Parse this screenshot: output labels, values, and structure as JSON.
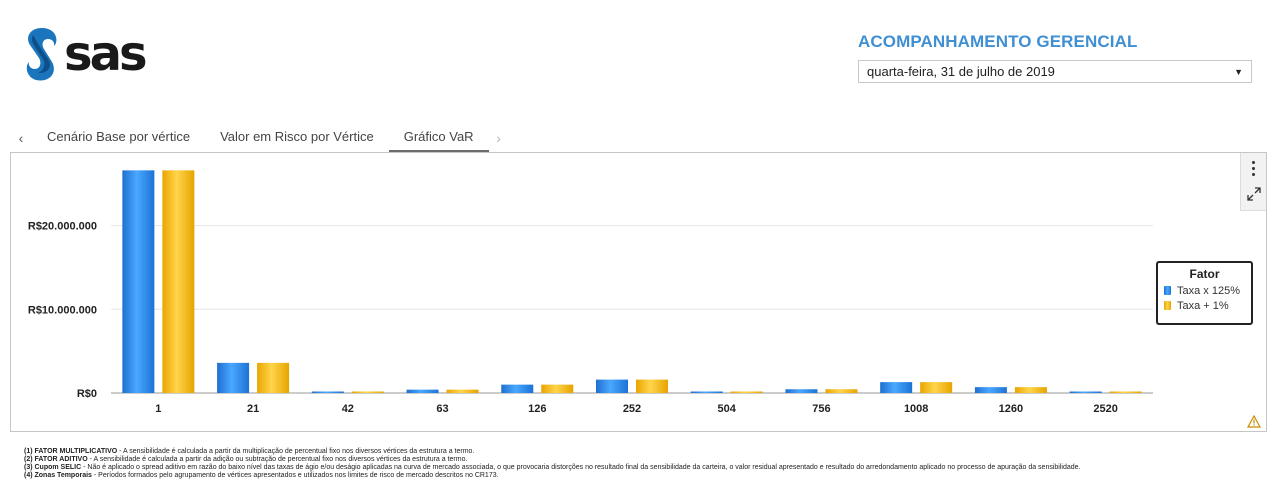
{
  "logo": {
    "text": "sas",
    "icon": "sas-s-logo-icon",
    "color": "#1b75bc"
  },
  "header": {
    "title": "ACOMPANHAMENTO GERENCIAL",
    "title_color": "#3f8fd2",
    "date_selected": "quarta-feira, 31 de julho de 2019"
  },
  "tabs": {
    "prev_icon": "chevron-left-icon",
    "next_icon": "chevron-right-icon",
    "items": [
      {
        "label": "Cenário Base por vértice",
        "active": false
      },
      {
        "label": "Valor em Risco por Vértice",
        "active": false
      },
      {
        "label": "Gráfico VaR",
        "active": true
      }
    ]
  },
  "panel": {
    "menu_icon": "more-vertical-icon",
    "expand_icon": "expand-icon",
    "warning_icon": "warning-icon"
  },
  "chart_data": {
    "type": "bar",
    "categories": [
      "1",
      "21",
      "42",
      "63",
      "126",
      "252",
      "504",
      "756",
      "1008",
      "1260",
      "2520"
    ],
    "series": [
      {
        "name": "Taxa x 125%",
        "color": "#2a8ff0",
        "values": [
          26600000,
          3600000,
          100000,
          400000,
          1000000,
          1600000,
          80000,
          450000,
          1300000,
          700000,
          150000
        ]
      },
      {
        "name": "Taxa + 1%",
        "color": "#f5bd1f",
        "values": [
          26600000,
          3600000,
          100000,
          400000,
          1000000,
          1600000,
          80000,
          450000,
          1300000,
          700000,
          150000
        ]
      }
    ],
    "ylim": [
      0,
      27000000
    ],
    "yticks": [
      {
        "value": 0,
        "label": "R$0"
      },
      {
        "value": 10000000,
        "label": "R$10.000.000"
      },
      {
        "value": 20000000,
        "label": "R$20.000.000"
      }
    ],
    "grid": true,
    "legend": {
      "title": "Fator",
      "position": "right"
    }
  },
  "footnotes": [
    {
      "label": "(1) FATOR MULTIPLICATIVO",
      "text": " - A sensibilidade é calculada a partir da multiplicação de percentual fixo nos diversos vértices da estrutura a termo."
    },
    {
      "label": "(2) FATOR ADITIVO",
      "text": " - A sensibilidade é calculada a partir da adição ou subtração de percentual fixo nos diversos vértices da estrutura a termo."
    },
    {
      "label": "(3) Cupom SELIC",
      "text": " - Não é aplicado o spread aditivo em razão do baixo nível das taxas de ágio e/ou deságio aplicadas na curva de mercado associada, o que provocaria distorções no resultado final da sensibilidade da carteira, o valor residual apresentado e resultado do arredondamento aplicado no processo de apuração da sensibilidade."
    },
    {
      "label": "(4) Zonas Temporais",
      "text": " - Períodos formados pelo agrupamento de vértices apresentados e utilizados nos limites de risco de mercado descritos no CR173."
    }
  ]
}
